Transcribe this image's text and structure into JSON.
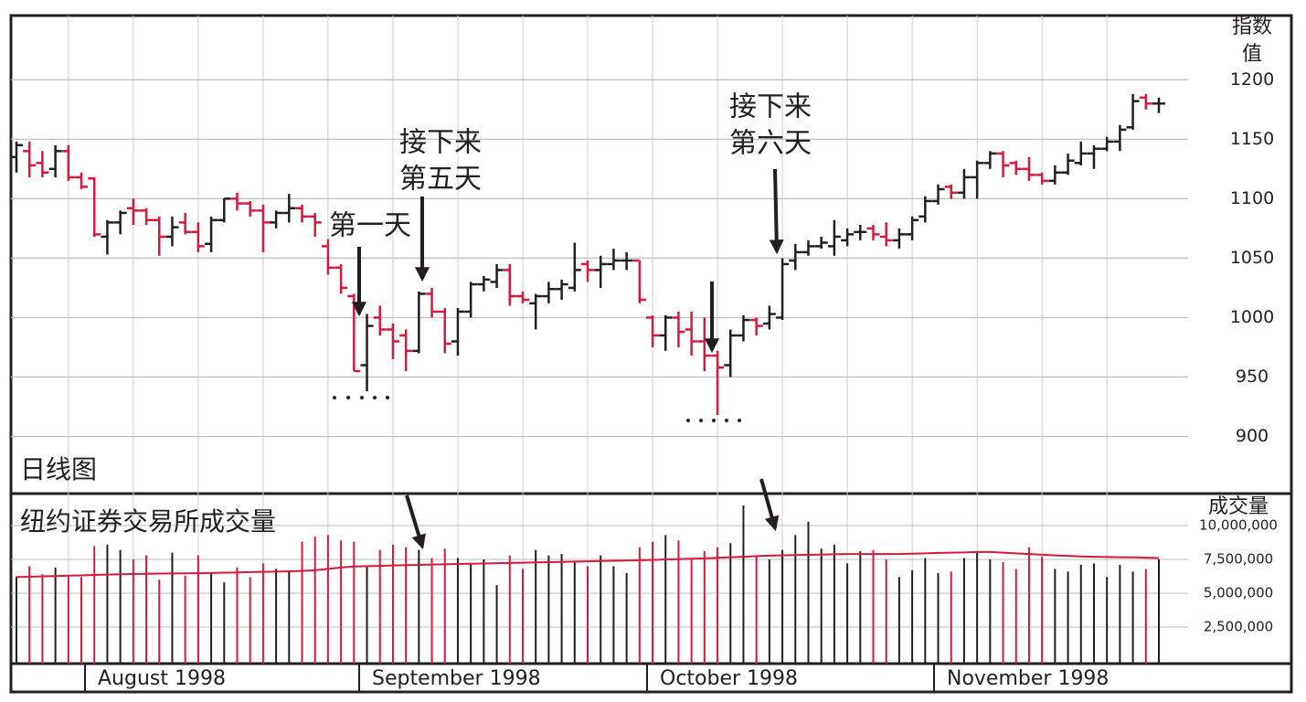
{
  "chart_data": {
    "type": "ohlc",
    "ylabel": [
      "指数",
      "值"
    ],
    "panel_label": "日线图",
    "up_color": "#231f20",
    "down_color": "#d6193d",
    "ylim": [
      852,
      1254
    ],
    "yticks": [
      900,
      950,
      1000,
      1050,
      1100,
      1150,
      1200
    ],
    "annotations": [
      {
        "lines": [
          "第一天"
        ]
      },
      {
        "lines": [
          "接下来",
          "第五天"
        ]
      },
      {
        "lines": [
          "接下来",
          "第六天"
        ]
      }
    ],
    "ohlc": [
      [
        1135,
        1148,
        1122,
        1145
      ],
      [
        1140,
        1148,
        1118,
        1128
      ],
      [
        1130,
        1140,
        1118,
        1122
      ],
      [
        1125,
        1145,
        1118,
        1140
      ],
      [
        1140,
        1145,
        1115,
        1118
      ],
      [
        1118,
        1122,
        1108,
        1110
      ],
      [
        1117,
        1118,
        1068,
        1070
      ],
      [
        1068,
        1082,
        1053,
        1080
      ],
      [
        1080,
        1090,
        1070,
        1088
      ],
      [
        1092,
        1100,
        1078,
        1090
      ],
      [
        1090,
        1092,
        1078,
        1082
      ],
      [
        1082,
        1085,
        1052,
        1068
      ],
      [
        1068,
        1085,
        1060,
        1076
      ],
      [
        1080,
        1088,
        1070,
        1072
      ],
      [
        1072,
        1080,
        1055,
        1060
      ],
      [
        1062,
        1085,
        1055,
        1082
      ],
      [
        1082,
        1100,
        1080,
        1100
      ],
      [
        1100,
        1105,
        1090,
        1096
      ],
      [
        1096,
        1098,
        1085,
        1090
      ],
      [
        1090,
        1095,
        1055,
        1080
      ],
      [
        1080,
        1090,
        1075,
        1088
      ],
      [
        1088,
        1104,
        1080,
        1092
      ],
      [
        1092,
        1095,
        1080,
        1085
      ],
      [
        1085,
        1088,
        1068,
        1080
      ],
      [
        1060,
        1066,
        1036,
        1042
      ],
      [
        1042,
        1045,
        1020,
        1025
      ],
      [
        1018,
        1020,
        955,
        955
      ],
      [
        960,
        1003,
        938,
        993
      ],
      [
        1000,
        1010,
        985,
        990
      ],
      [
        990,
        995,
        965,
        980
      ],
      [
        985,
        990,
        955,
        972
      ],
      [
        972,
        1022,
        970,
        1020
      ],
      [
        1020,
        1025,
        1000,
        1005
      ],
      [
        1005,
        1008,
        970,
        978
      ],
      [
        980,
        1008,
        968,
        1005
      ],
      [
        1005,
        1030,
        1000,
        1028
      ],
      [
        1028,
        1035,
        1022,
        1032
      ],
      [
        1030,
        1045,
        1025,
        1040
      ],
      [
        1040,
        1045,
        1010,
        1018
      ],
      [
        1018,
        1022,
        1012,
        1015
      ],
      [
        1012,
        1020,
        990,
        1018
      ],
      [
        1018,
        1030,
        1012,
        1024
      ],
      [
        1024,
        1032,
        1015,
        1028
      ],
      [
        1025,
        1063,
        1022,
        1040
      ],
      [
        1045,
        1048,
        1030,
        1040
      ],
      [
        1040,
        1052,
        1025,
        1045
      ],
      [
        1045,
        1058,
        1040,
        1048
      ],
      [
        1048,
        1055,
        1040,
        1048
      ],
      [
        1048,
        1048,
        1012,
        1015
      ],
      [
        1000,
        1002,
        975,
        985
      ],
      [
        985,
        1002,
        972,
        1000
      ],
      [
        1000,
        1005,
        975,
        988
      ],
      [
        990,
        1005,
        968,
        980
      ],
      [
        980,
        1000,
        955,
        968
      ],
      [
        968,
        972,
        918,
        958
      ],
      [
        960,
        990,
        950,
        985
      ],
      [
        985,
        1002,
        980,
        998
      ],
      [
        998,
        1000,
        985,
        993
      ],
      [
        995,
        1010,
        990,
        1003
      ],
      [
        1000,
        1050,
        998,
        1045
      ],
      [
        1048,
        1062,
        1040,
        1055
      ],
      [
        1055,
        1065,
        1052,
        1060
      ],
      [
        1060,
        1068,
        1058,
        1063
      ],
      [
        1060,
        1082,
        1052,
        1068
      ],
      [
        1065,
        1075,
        1060,
        1070
      ],
      [
        1072,
        1078,
        1065,
        1072
      ],
      [
        1075,
        1078,
        1065,
        1070
      ],
      [
        1068,
        1080,
        1060,
        1065
      ],
      [
        1065,
        1075,
        1058,
        1070
      ],
      [
        1070,
        1085,
        1065,
        1082
      ],
      [
        1085,
        1102,
        1080,
        1098
      ],
      [
        1098,
        1112,
        1095,
        1108
      ],
      [
        1110,
        1112,
        1100,
        1105
      ],
      [
        1105,
        1125,
        1100,
        1118
      ],
      [
        1118,
        1132,
        1100,
        1130
      ],
      [
        1130,
        1140,
        1125,
        1138
      ],
      [
        1138,
        1140,
        1118,
        1128
      ],
      [
        1130,
        1132,
        1120,
        1125
      ],
      [
        1125,
        1135,
        1115,
        1120
      ],
      [
        1120,
        1122,
        1112,
        1115
      ],
      [
        1115,
        1128,
        1112,
        1122
      ],
      [
        1122,
        1138,
        1120,
        1132
      ],
      [
        1130,
        1148,
        1128,
        1138
      ],
      [
        1138,
        1145,
        1125,
        1142
      ],
      [
        1142,
        1152,
        1140,
        1148
      ],
      [
        1148,
        1162,
        1140,
        1158
      ],
      [
        1160,
        1188,
        1158,
        1182
      ],
      [
        1185,
        1188,
        1175,
        1180
      ],
      [
        1180,
        1185,
        1172,
        1180
      ]
    ],
    "volume": {
      "title": "纽约证券交易所成交量",
      "label": "成交量",
      "ylim": [
        0,
        12300000
      ],
      "yticks": [
        {
          "value": 2500000,
          "label": "2,500,000"
        },
        {
          "value": 5000000,
          "label": "5,000,000"
        },
        {
          "value": 7500000,
          "label": "7,500,000"
        },
        {
          "value": 10000000,
          "label": "10,000,000"
        }
      ],
      "ma_color": "#d6193d",
      "values": [
        6200000,
        7000000,
        6400000,
        6900000,
        6300000,
        6200000,
        8500000,
        8600000,
        8200000,
        7500000,
        7800000,
        6000000,
        8000000,
        6300000,
        7800000,
        6500000,
        5800000,
        6900000,
        6200000,
        7200000,
        6800000,
        6700000,
        8800000,
        9200000,
        9300000,
        8900000,
        8800000,
        7000000,
        8200000,
        8600000,
        8400000,
        8200000,
        7600000,
        8300000,
        7600000,
        7200000,
        7500000,
        5600000,
        7800000,
        6800000,
        8200000,
        7800000,
        7900000,
        7300000,
        7000000,
        7800000,
        7000000,
        6500000,
        8400000,
        8800000,
        9300000,
        8900000,
        7500000,
        8100000,
        8400000,
        8700000,
        11500000,
        7800000,
        7500000,
        8200000,
        9300000,
        10300000,
        8300000,
        8600000,
        7200000,
        8100000,
        8200000,
        7500000,
        6200000,
        6700000,
        7600000,
        6500000,
        6600000,
        7600000,
        8000000,
        7500000,
        7300000,
        6800000,
        8400000,
        7700000,
        6800000,
        6600000,
        7100000,
        7200000,
        6200000,
        7100000,
        6600000,
        6800000,
        7500000
      ],
      "ma": [
        6200000,
        6220000,
        6250000,
        6270000,
        6300000,
        6320000,
        6350000,
        6380000,
        6400000,
        6420000,
        6440000,
        6450000,
        6460000,
        6470000,
        6480000,
        6500000,
        6520000,
        6540000,
        6560000,
        6580000,
        6600000,
        6620000,
        6650000,
        6700000,
        6800000,
        6900000,
        6980000,
        7000000,
        7020000,
        7050000,
        7080000,
        7100000,
        7120000,
        7140000,
        7160000,
        7180000,
        7200000,
        7220000,
        7240000,
        7260000,
        7280000,
        7300000,
        7320000,
        7340000,
        7360000,
        7380000,
        7400000,
        7420000,
        7440000,
        7460000,
        7500000,
        7520000,
        7550000,
        7580000,
        7620000,
        7660000,
        7700000,
        7750000,
        7780000,
        7800000,
        7820000,
        7840000,
        7860000,
        7880000,
        7900000,
        7900000,
        7900000,
        7900000,
        7900000,
        7920000,
        7950000,
        7980000,
        8000000,
        8020000,
        8050000,
        8050000,
        8000000,
        7950000,
        7900000,
        7850000,
        7800000,
        7760000,
        7720000,
        7700000,
        7680000,
        7660000,
        7650000,
        7630000,
        7600000
      ]
    },
    "months": [
      "August 1998",
      "September 1998",
      "October 1998",
      "November 1998"
    ]
  }
}
